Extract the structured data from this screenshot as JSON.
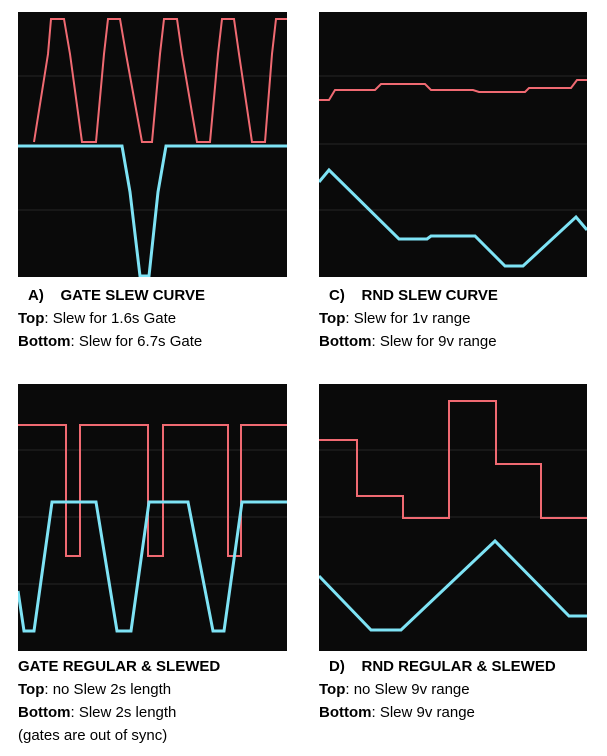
{
  "panels": [
    {
      "id": "A",
      "title_prefix": "A)",
      "title": "GATE SLEW CURVE",
      "lines": [
        {
          "label": "Top",
          "text": ": Slew for 1.6s Gate"
        },
        {
          "label": "Bottom",
          "text": ": Slew for 6.7s Gate"
        }
      ]
    },
    {
      "id": "C",
      "title_prefix": "C)",
      "title": "RND SLEW CURVE",
      "lines": [
        {
          "label": "Top",
          "text": ": Slew for 1v range"
        },
        {
          "label": "Bottom",
          "text": ": Slew for 9v range"
        }
      ]
    },
    {
      "id": "B",
      "title_prefix": "",
      "title": "GATE REGULAR & SLEWED",
      "lines": [
        {
          "label": "Top",
          "text": ": no Slew 2s length"
        },
        {
          "label": "Bottom",
          "text": ": Slew 2s length"
        }
      ],
      "note": "(gates are out of sync)"
    },
    {
      "id": "D",
      "title_prefix": "D)",
      "title": "RND REGULAR & SLEWED",
      "lines": [
        {
          "label": "Top",
          "text": ": no Slew 9v range"
        },
        {
          "label": "Bottom",
          "text": ": Slew 9v range"
        }
      ]
    }
  ],
  "colors": {
    "scope_background": "#0a0a0a",
    "top_trace": "#f06a72",
    "bottom_trace": "#7ee3f5",
    "grid": "#262626"
  }
}
